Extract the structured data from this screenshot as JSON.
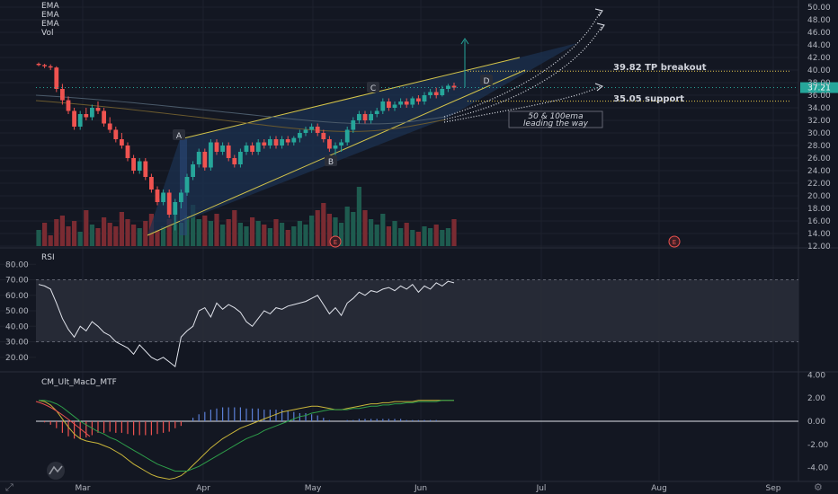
{
  "legend": {
    "lines": [
      "EMA",
      "EMA",
      "EMA",
      "Vol"
    ]
  },
  "colors": {
    "bg": "#131722",
    "grid": "#1e222d",
    "axis_text": "#b2b5be",
    "up": "#26a69a",
    "down": "#ef5350",
    "vol_up": "#1e5b4f",
    "vol_down": "#7a2b32",
    "wedge_line": "#d4c44a",
    "wedge_fill": "#1c3150",
    "annotation": "#e6c84a"
  },
  "icons": {
    "logo": "tradingview-logo-icon",
    "zoom": "zoom-icon",
    "gear": "gear-icon",
    "earnings": "earnings-marker-icon"
  },
  "annotations": {
    "tp": "39.82 TP breakout",
    "support": "35.05 support",
    "ema_note_1": "50 & 100ema",
    "ema_note_2": "leading the way",
    "points": [
      "A",
      "B",
      "C",
      "D"
    ],
    "earnings": "E",
    "last_price": "37.21"
  },
  "chart_data": [
    {
      "type": "candlestick",
      "xlabels": [
        "Mar",
        "Apr",
        "May",
        "Jun",
        "Jul",
        "Aug",
        "Sep"
      ],
      "ylim": [
        12,
        50
      ],
      "yticks": [
        12,
        14,
        16,
        18,
        20,
        22,
        24,
        26,
        28,
        30,
        32,
        34,
        36,
        38,
        40,
        42,
        44,
        46,
        48,
        50
      ],
      "ohlc": [
        [
          41.0,
          41.2,
          40.6,
          40.8
        ],
        [
          40.8,
          41.0,
          40.3,
          40.6
        ],
        [
          40.6,
          40.9,
          40.0,
          40.4
        ],
        [
          40.4,
          40.6,
          36.5,
          37.0
        ],
        [
          37.0,
          37.8,
          34.5,
          35.2
        ],
        [
          35.2,
          35.8,
          33.0,
          33.5
        ],
        [
          33.5,
          34.0,
          30.5,
          31.0
        ],
        [
          31.0,
          33.5,
          30.5,
          33.0
        ],
        [
          33.0,
          34.0,
          32.0,
          32.5
        ],
        [
          32.5,
          34.5,
          32.0,
          34.0
        ],
        [
          34.0,
          35.0,
          33.0,
          33.5
        ],
        [
          33.5,
          34.0,
          31.0,
          31.5
        ],
        [
          31.5,
          32.5,
          30.0,
          30.5
        ],
        [
          30.5,
          31.0,
          28.5,
          29.0
        ],
        [
          29.0,
          30.0,
          27.5,
          28.0
        ],
        [
          28.0,
          28.5,
          25.5,
          26.0
        ],
        [
          26.0,
          26.5,
          23.5,
          24.0
        ],
        [
          24.0,
          26.0,
          23.5,
          25.5
        ],
        [
          25.5,
          26.0,
          22.5,
          23.0
        ],
        [
          23.0,
          23.5,
          20.5,
          21.0
        ],
        [
          21.0,
          21.5,
          18.5,
          19.0
        ],
        [
          19.0,
          21.0,
          18.5,
          20.5
        ],
        [
          20.5,
          21.0,
          16.5,
          17.0
        ],
        [
          17.0,
          19.5,
          14.5,
          19.0
        ],
        [
          19.0,
          21.0,
          18.0,
          20.5
        ],
        [
          20.5,
          23.5,
          20.0,
          23.0
        ],
        [
          23.0,
          25.5,
          22.5,
          25.0
        ],
        [
          25.0,
          27.5,
          24.5,
          27.0
        ],
        [
          27.0,
          27.5,
          24.0,
          24.5
        ],
        [
          24.5,
          29.0,
          24.0,
          28.5
        ],
        [
          28.5,
          29.0,
          26.5,
          27.0
        ],
        [
          27.0,
          28.5,
          26.5,
          28.0
        ],
        [
          28.0,
          28.5,
          25.5,
          26.0
        ],
        [
          26.0,
          26.5,
          24.5,
          25.0
        ],
        [
          25.0,
          27.5,
          24.5,
          27.0
        ],
        [
          27.0,
          28.5,
          26.5,
          28.0
        ],
        [
          28.0,
          28.5,
          26.5,
          27.0
        ],
        [
          27.0,
          29.0,
          26.5,
          28.5
        ],
        [
          28.5,
          29.0,
          27.5,
          28.0
        ],
        [
          28.0,
          29.5,
          27.5,
          29.0
        ],
        [
          29.0,
          29.5,
          27.5,
          28.0
        ],
        [
          28.0,
          29.5,
          27.5,
          29.0
        ],
        [
          29.0,
          29.5,
          28.0,
          28.5
        ],
        [
          28.5,
          29.5,
          28.0,
          29.2
        ],
        [
          29.2,
          30.5,
          28.5,
          30.0
        ],
        [
          30.0,
          31.0,
          29.5,
          30.5
        ],
        [
          30.5,
          31.5,
          30.0,
          31.0
        ],
        [
          31.0,
          31.5,
          29.5,
          30.0
        ],
        [
          30.0,
          30.5,
          28.5,
          29.0
        ],
        [
          29.0,
          29.5,
          27.0,
          27.5
        ],
        [
          27.5,
          28.5,
          26.5,
          28.0
        ],
        [
          28.0,
          29.0,
          27.0,
          28.5
        ],
        [
          28.5,
          31.0,
          28.0,
          30.5
        ],
        [
          30.5,
          32.5,
          30.0,
          32.0
        ],
        [
          32.0,
          33.5,
          31.5,
          33.0
        ],
        [
          33.0,
          33.5,
          31.5,
          32.0
        ],
        [
          32.0,
          33.5,
          31.5,
          33.0
        ],
        [
          33.0,
          34.0,
          32.5,
          33.5
        ],
        [
          33.5,
          35.5,
          33.0,
          35.0
        ],
        [
          35.0,
          35.5,
          33.5,
          34.0
        ],
        [
          34.0,
          35.0,
          33.5,
          34.5
        ],
        [
          34.5,
          35.5,
          34.0,
          35.0
        ],
        [
          35.0,
          35.5,
          34.0,
          34.5
        ],
        [
          34.5,
          35.8,
          34.0,
          35.5
        ],
        [
          35.5,
          36.0,
          34.5,
          35.0
        ],
        [
          35.0,
          36.5,
          34.5,
          36.0
        ],
        [
          36.0,
          37.0,
          35.5,
          36.5
        ],
        [
          36.5,
          37.2,
          35.5,
          36.0
        ],
        [
          36.0,
          37.5,
          35.8,
          37.0
        ],
        [
          37.0,
          37.8,
          36.5,
          37.5
        ],
        [
          37.5,
          38.0,
          36.8,
          37.21
        ]
      ],
      "volume_up_flags": [
        true,
        false,
        false,
        false,
        false,
        false,
        false,
        true,
        false,
        true,
        false,
        false,
        false,
        false,
        false,
        false,
        false,
        true,
        false,
        false,
        false,
        true,
        false,
        true,
        true,
        true,
        true,
        true,
        false,
        true,
        false,
        true,
        false,
        false,
        true,
        true,
        false,
        true,
        false,
        true,
        false,
        true,
        false,
        true,
        true,
        true,
        true,
        false,
        false,
        false,
        true,
        true,
        true,
        true,
        true,
        false,
        true,
        true,
        true,
        false,
        true,
        true,
        false,
        true,
        false,
        true,
        true,
        false,
        true,
        true,
        false
      ]
    },
    {
      "type": "line",
      "title": "RSI",
      "ylim": [
        10,
        90
      ],
      "yticks": [
        20,
        30,
        40,
        50,
        60,
        70,
        80
      ],
      "band": [
        30,
        70
      ],
      "values": [
        67,
        66,
        64,
        55,
        45,
        38,
        33,
        40,
        37,
        43,
        40,
        36,
        34,
        30,
        28,
        26,
        22,
        28,
        24,
        20,
        18,
        20,
        17,
        14,
        33,
        37,
        40,
        50,
        52,
        46,
        55,
        51,
        54,
        52,
        49,
        43,
        40,
        45,
        50,
        48,
        52,
        51,
        53,
        54,
        55,
        56,
        58,
        60,
        54,
        48,
        52,
        47,
        55,
        58,
        62,
        60,
        63,
        62,
        64,
        65,
        63,
        66,
        64,
        67,
        62,
        66,
        64,
        68,
        66,
        69,
        68
      ]
    },
    {
      "type": "macd",
      "title": "CM_Ult_MacD_MTF",
      "ylim": [
        -5,
        5
      ],
      "yticks": [
        -4,
        -2,
        0,
        2,
        4
      ],
      "macd": [
        1.8,
        1.7,
        1.4,
        0.9,
        0.2,
        -0.5,
        -1.1,
        -1.5,
        -1.7,
        -1.8,
        -1.9,
        -2.1,
        -2.3,
        -2.6,
        -2.9,
        -3.3,
        -3.7,
        -4.0,
        -4.3,
        -4.6,
        -4.8,
        -4.9,
        -5.0,
        -4.9,
        -4.7,
        -4.3,
        -3.8,
        -3.3,
        -2.8,
        -2.3,
        -1.9,
        -1.5,
        -1.2,
        -0.9,
        -0.6,
        -0.4,
        -0.2,
        0.0,
        0.2,
        0.4,
        0.6,
        0.8,
        0.9,
        1.0,
        1.1,
        1.2,
        1.3,
        1.3,
        1.2,
        1.1,
        1.0,
        1.0,
        1.1,
        1.2,
        1.3,
        1.4,
        1.5,
        1.5,
        1.6,
        1.6,
        1.7,
        1.7,
        1.7,
        1.7,
        1.8,
        1.8,
        1.8,
        1.8,
        1.8,
        1.8,
        1.8
      ],
      "signal": [
        1.8,
        1.8,
        1.7,
        1.5,
        1.2,
        0.8,
        0.4,
        0.0,
        -0.3,
        -0.6,
        -0.9,
        -1.1,
        -1.4,
        -1.6,
        -1.9,
        -2.2,
        -2.5,
        -2.8,
        -3.1,
        -3.4,
        -3.7,
        -3.9,
        -4.1,
        -4.3,
        -4.3,
        -4.3,
        -4.1,
        -3.9,
        -3.6,
        -3.3,
        -3.0,
        -2.7,
        -2.4,
        -2.1,
        -1.8,
        -1.5,
        -1.3,
        -1.1,
        -0.8,
        -0.6,
        -0.4,
        -0.2,
        0.0,
        0.2,
        0.4,
        0.5,
        0.7,
        0.8,
        0.9,
        1.0,
        1.0,
        1.0,
        1.0,
        1.1,
        1.1,
        1.2,
        1.3,
        1.3,
        1.4,
        1.4,
        1.5,
        1.5,
        1.6,
        1.6,
        1.7,
        1.7,
        1.7,
        1.7,
        1.8,
        1.8,
        1.8
      ],
      "hist": [
        0.0,
        -0.1,
        -0.3,
        -0.6,
        -1.0,
        -1.3,
        -1.5,
        -1.5,
        -1.4,
        -1.2,
        -1.0,
        -1.0,
        -0.9,
        -1.0,
        -1.0,
        -1.1,
        -1.2,
        -1.2,
        -1.2,
        -1.2,
        -1.1,
        -1.0,
        -0.9,
        -0.6,
        -0.4,
        0.0,
        0.3,
        0.6,
        0.8,
        1.0,
        1.1,
        1.2,
        1.2,
        1.2,
        1.2,
        1.1,
        1.1,
        1.1,
        1.0,
        1.0,
        1.0,
        1.0,
        0.9,
        0.8,
        0.7,
        0.7,
        0.6,
        0.5,
        0.3,
        0.1,
        0.0,
        0.0,
        0.1,
        0.1,
        0.2,
        0.2,
        0.2,
        0.2,
        0.2,
        0.2,
        0.2,
        0.2,
        0.1,
        0.1,
        0.1,
        0.1,
        0.1,
        0.1,
        0.0,
        0.0,
        0.0
      ]
    }
  ]
}
